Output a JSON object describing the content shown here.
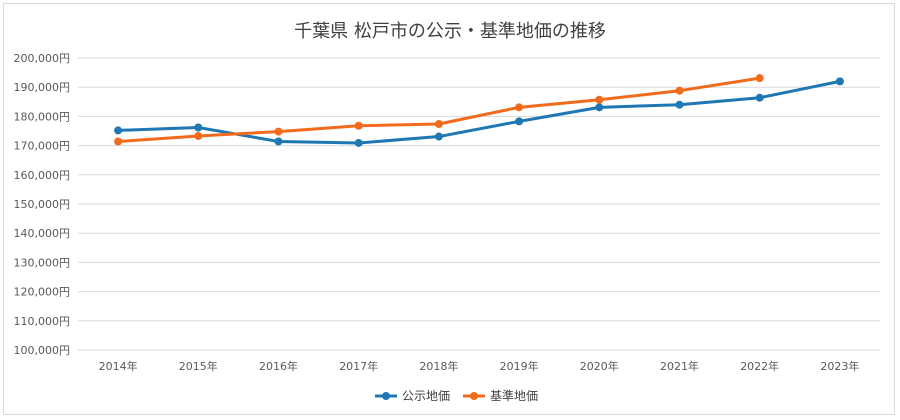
{
  "chart_data": {
    "type": "line",
    "title": "千葉県 松戸市の公示・基準地価の推移",
    "categories": [
      "2014年",
      "2015年",
      "2016年",
      "2017年",
      "2018年",
      "2019年",
      "2020年",
      "2021年",
      "2022年",
      "2023年"
    ],
    "y_tick_labels": [
      "100,000円",
      "110,000円",
      "120,000円",
      "130,000円",
      "140,000円",
      "150,000円",
      "160,000円",
      "170,000円",
      "180,000円",
      "190,000円",
      "200,000円"
    ],
    "ylim": [
      100000,
      200000
    ],
    "grid": true,
    "legend_position": "bottom",
    "series": [
      {
        "name": "公示地価",
        "color": "#1f77b4",
        "values": [
          175200,
          176200,
          171400,
          170900,
          173100,
          178300,
          183100,
          184000,
          186400,
          192000
        ]
      },
      {
        "name": "基準地価",
        "color": "#f26b1d",
        "values": [
          171400,
          173300,
          174800,
          176800,
          177400,
          183100,
          185700,
          188800,
          193100,
          null
        ]
      }
    ]
  }
}
